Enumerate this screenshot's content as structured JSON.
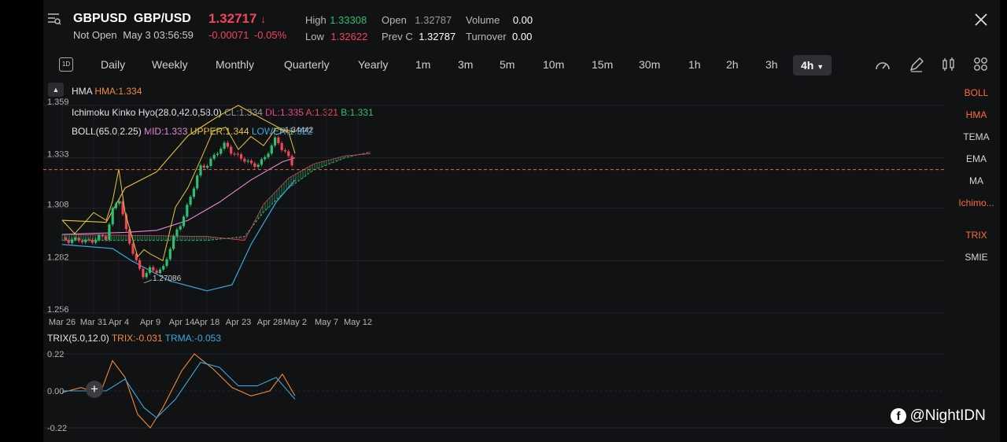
{
  "header": {
    "symbol": "GBPUSD",
    "name": "GBP/USD",
    "price": "1.32717",
    "status": "Not Open",
    "datetime": "May 3 03:56:59",
    "change": "-0.00071",
    "change_pct": "-0.05%",
    "stats": {
      "high_label": "High",
      "high": "1.33308",
      "low_label": "Low",
      "low": "1.32622",
      "open_label": "Open",
      "open": "1.32787",
      "prevc_label": "Prev C",
      "prevc": "1.32787",
      "volume_label": "Volume",
      "volume": "0.00",
      "turnover_label": "Turnover",
      "turnover": "0.00"
    }
  },
  "toolbar": {
    "interval_icon": "1D",
    "timeframes": [
      "Daily",
      "Weekly",
      "Monthly",
      "Quarterly",
      "Yearly",
      "1m",
      "3m",
      "5m",
      "10m",
      "15m",
      "30m",
      "1h",
      "2h",
      "3h"
    ],
    "active_timeframe": "4h"
  },
  "side_indicators": [
    {
      "label": "BOLL",
      "active": true
    },
    {
      "label": "HMA",
      "active": true
    },
    {
      "label": "TEMA",
      "active": false
    },
    {
      "label": "EMA",
      "active": false
    },
    {
      "label": "MA",
      "active": false
    },
    {
      "label": "Ichimo...",
      "active": true
    },
    {
      "label": "TRIX",
      "active": true
    },
    {
      "label": "SMIE",
      "active": false
    }
  ],
  "indicators": {
    "hma_name": "HMA",
    "hma_value": "HMA:1.334",
    "ichimoku_name": "Ichimoku Kinko Hyo(28.0,42.0,58.0)",
    "ichimoku_cl": "CL:1.334",
    "ichimoku_dl": "DL:1.335",
    "ichimoku_a": "A:1.321",
    "ichimoku_b": "B:1.331",
    "boll_name": "BOLL(65.0,2.25)",
    "boll_mid": "MID:1.333",
    "boll_upper": "UPPER:1.344",
    "boll_lower": "LOWER:1.322",
    "trix_name": "TRIX(5.0,12.0)",
    "trix_value": "TRIX:-0.031",
    "trma_value": "TRMA:-0.053"
  },
  "watermark": "@NightIDN",
  "colors": {
    "up": "#2fbf71",
    "down": "#f0465a",
    "boll": "#e8c53a",
    "hma": "#f08a3c",
    "boll_mid": "#e58ad8",
    "lower": "#3aa9e0",
    "trix": "#f08a3c",
    "trma": "#3aa9e0"
  },
  "chart_data": [
    {
      "type": "candlestick",
      "title": "GBPUSD 4h",
      "y_ticks": [
        "1.359",
        "1.333",
        "1.308",
        "1.282",
        "1.256"
      ],
      "ylim": [
        1.256,
        1.359
      ],
      "x_ticks": [
        "Mar 26",
        "Mar 31",
        "Apr 4",
        "Apr 9",
        "Apr 14",
        "Apr 18",
        "Apr 23",
        "Apr 28",
        "May 2",
        "May 7",
        "May 12"
      ],
      "annotations": [
        {
          "label": "1.34442",
          "x": "Apr 29",
          "y": 1.34442
        },
        {
          "label": "1.27086",
          "x": "Apr 8",
          "y": 1.27086
        }
      ],
      "current_price": 1.32717,
      "close_path": [
        [
          "Mar 26",
          1.2935
        ],
        [
          "Mar 28",
          1.2915
        ],
        [
          "Mar 31",
          1.2925
        ],
        [
          "Apr 2",
          1.2935
        ],
        [
          "Apr 3",
          1.3075
        ],
        [
          "Apr 4",
          1.314
        ],
        [
          "Apr 5",
          1.2975
        ],
        [
          "Apr 7",
          1.28
        ],
        [
          "Apr 8",
          1.274
        ],
        [
          "Apr 9",
          1.277
        ],
        [
          "Apr 11",
          1.278
        ],
        [
          "Apr 13",
          1.295
        ],
        [
          "Apr 15",
          1.31
        ],
        [
          "Apr 17",
          1.328
        ],
        [
          "Apr 19",
          1.333
        ],
        [
          "Apr 21",
          1.34
        ],
        [
          "Apr 23",
          1.333
        ],
        [
          "Apr 25",
          1.33
        ],
        [
          "Apr 27",
          1.331
        ],
        [
          "Apr 29",
          1.3435
        ],
        [
          "May 1",
          1.332
        ],
        [
          "May 2",
          1.3272
        ]
      ],
      "boll_upper": [
        [
          "Mar 26",
          1.302
        ],
        [
          "Apr 2",
          1.301
        ],
        [
          "Apr 5",
          1.318
        ],
        [
          "Apr 10",
          1.326
        ],
        [
          "Apr 15",
          1.344
        ],
        [
          "Apr 20",
          1.354
        ],
        [
          "Apr 23",
          1.359
        ],
        [
          "Apr 27",
          1.352
        ],
        [
          "Apr 30",
          1.347
        ],
        [
          "May 2",
          1.346
        ]
      ],
      "boll_mid": [
        [
          "Mar 26",
          1.295
        ],
        [
          "Apr 5",
          1.296
        ],
        [
          "Apr 10",
          1.297
        ],
        [
          "Apr 15",
          1.302
        ],
        [
          "Apr 20",
          1.311
        ],
        [
          "Apr 25",
          1.322
        ],
        [
          "Apr 30",
          1.331
        ],
        [
          "May 2",
          1.333
        ]
      ],
      "boll_lower": [
        [
          "Mar 26",
          1.29
        ],
        [
          "Apr 3",
          1.288
        ],
        [
          "Apr 6",
          1.282
        ],
        [
          "Apr 12",
          1.272
        ],
        [
          "Apr 18",
          1.267
        ],
        [
          "Apr 22",
          1.27
        ],
        [
          "Apr 25",
          1.29
        ],
        [
          "Apr 29",
          1.311
        ],
        [
          "May 2",
          1.322
        ]
      ],
      "cloud_a": [
        [
          "Mar 26",
          1.292
        ],
        [
          "Apr 18",
          1.292
        ],
        [
          "Apr 24",
          1.294
        ],
        [
          "Apr 27",
          1.306
        ],
        [
          "May 1",
          1.318
        ],
        [
          "May 5",
          1.327
        ],
        [
          "May 10",
          1.333
        ],
        [
          "May 14",
          1.336
        ]
      ],
      "cloud_b": [
        [
          "Mar 26",
          1.295
        ],
        [
          "Apr 18",
          1.294
        ],
        [
          "Apr 24",
          1.292
        ],
        [
          "Apr 27",
          1.31
        ],
        [
          "May 1",
          1.323
        ],
        [
          "May 5",
          1.33
        ],
        [
          "May 10",
          1.334
        ],
        [
          "May 14",
          1.335
        ]
      ]
    },
    {
      "type": "line",
      "title": "TRIX(5.0,12.0)",
      "y_ticks": [
        "0.22",
        "0.00",
        "-0.22"
      ],
      "ylim": [
        -0.22,
        0.22
      ],
      "series": [
        {
          "name": "TRIX",
          "points": [
            [
              "Mar 26",
              -0.01
            ],
            [
              "Mar 29",
              0.02
            ],
            [
              "Apr 1",
              -0.02
            ],
            [
              "Apr 3",
              0.18
            ],
            [
              "Apr 5",
              0.08
            ],
            [
              "Apr 7",
              -0.14
            ],
            [
              "Apr 9",
              -0.22
            ],
            [
              "Apr 11",
              -0.1
            ],
            [
              "Apr 14",
              0.12
            ],
            [
              "Apr 16",
              0.22
            ],
            [
              "Apr 19",
              0.13
            ],
            [
              "Apr 22",
              0.02
            ],
            [
              "Apr 25",
              -0.03
            ],
            [
              "Apr 28",
              0.0
            ],
            [
              "Apr 30",
              0.1
            ],
            [
              "May 2",
              -0.03
            ]
          ]
        },
        {
          "name": "TRMA",
          "points": [
            [
              "Mar 26",
              0.0
            ],
            [
              "Apr 2",
              0.0
            ],
            [
              "Apr 5",
              0.07
            ],
            [
              "Apr 8",
              -0.1
            ],
            [
              "Apr 10",
              -0.16
            ],
            [
              "Apr 13",
              -0.05
            ],
            [
              "Apr 17",
              0.17
            ],
            [
              "Apr 20",
              0.14
            ],
            [
              "Apr 23",
              0.03
            ],
            [
              "Apr 26",
              0.03
            ],
            [
              "Apr 29",
              0.08
            ],
            [
              "May 2",
              -0.05
            ]
          ]
        }
      ]
    }
  ]
}
